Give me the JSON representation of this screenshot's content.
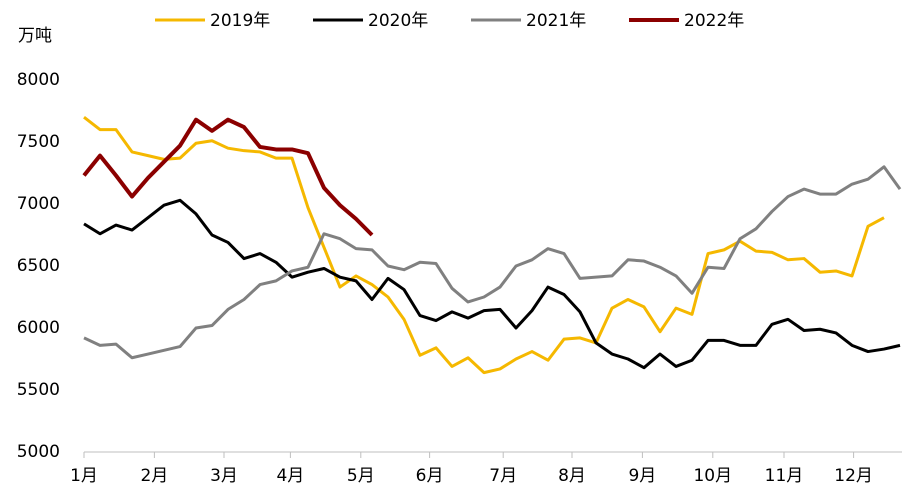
{
  "chart_data": {
    "type": "line",
    "y_label": "万吨",
    "x": [
      0,
      1,
      2,
      3,
      4,
      5,
      6,
      7,
      8,
      9,
      10,
      11,
      12,
      13,
      14,
      15,
      16,
      17,
      18,
      19,
      20,
      21,
      22,
      23,
      24,
      25,
      26,
      27,
      28,
      29,
      30,
      31,
      32,
      33,
      34,
      35,
      36,
      37,
      38,
      39,
      40,
      41,
      42,
      43,
      44,
      45,
      46,
      47,
      48,
      49,
      50,
      51
    ],
    "xlim": [
      0,
      51
    ],
    "xticks": [
      {
        "value": 0,
        "label": "1月"
      },
      {
        "value": 4.4,
        "label": "2月"
      },
      {
        "value": 8.75,
        "label": "3月"
      },
      {
        "value": 12.9,
        "label": "4月"
      },
      {
        "value": 17.3,
        "label": "5月"
      },
      {
        "value": 21.6,
        "label": "6月"
      },
      {
        "value": 26.2,
        "label": "7月"
      },
      {
        "value": 30.5,
        "label": "8月"
      },
      {
        "value": 34.9,
        "label": "9月"
      },
      {
        "value": 39.3,
        "label": "10月"
      },
      {
        "value": 43.75,
        "label": "11月"
      },
      {
        "value": 48.1,
        "label": "12月"
      }
    ],
    "ylim": [
      5000,
      8000
    ],
    "yticks": [
      5000,
      5500,
      6000,
      6500,
      7000,
      7500,
      8000
    ],
    "grid": false,
    "legend": "top",
    "series": [
      {
        "name": "2019年",
        "color": "#f5b800",
        "values": [
          7700,
          7600,
          7600,
          7420,
          7390,
          7360,
          7370,
          7490,
          7510,
          7450,
          7430,
          7420,
          7370,
          7370,
          6970,
          6650,
          6330,
          6420,
          6350,
          6250,
          6070,
          5780,
          5840,
          5690,
          5760,
          5640,
          5670,
          5750,
          5810,
          5740,
          5910,
          5920,
          5880,
          6160,
          6230,
          6170,
          5970,
          6160,
          6110,
          6600,
          6630,
          6700,
          6620,
          6610,
          6550,
          6560,
          6450,
          6460,
          6420,
          6820,
          6890,
          null
        ]
      },
      {
        "name": "2020年",
        "color": "#000000",
        "values": [
          6840,
          6760,
          6830,
          6790,
          6890,
          6990,
          7030,
          6920,
          6750,
          6690,
          6560,
          6600,
          6530,
          6410,
          6450,
          6480,
          6410,
          6380,
          6230,
          6400,
          6310,
          6100,
          6060,
          6130,
          6080,
          6140,
          6150,
          6000,
          6140,
          6330,
          6270,
          6130,
          5880,
          5790,
          5750,
          5680,
          5790,
          5690,
          5740,
          5900,
          5900,
          5860,
          5860,
          6030,
          6070,
          5980,
          5990,
          5960,
          5860,
          5810,
          5830,
          5860
        ]
      },
      {
        "name": "2021年",
        "color": "#808080",
        "values": [
          5920,
          5860,
          5870,
          5760,
          5790,
          5820,
          5850,
          6000,
          6020,
          6150,
          6230,
          6350,
          6380,
          6460,
          6490,
          6760,
          6720,
          6640,
          6630,
          6500,
          6470,
          6530,
          6520,
          6320,
          6210,
          6250,
          6330,
          6500,
          6550,
          6640,
          6600,
          6400,
          6410,
          6420,
          6550,
          6540,
          6490,
          6420,
          6280,
          6490,
          6480,
          6720,
          6800,
          6940,
          7060,
          7120,
          7080,
          7080,
          7160,
          7200,
          7300,
          7120
        ]
      },
      {
        "name": "2022年",
        "color": "#8b0000",
        "values": [
          7230,
          7390,
          7230,
          7060,
          7210,
          7340,
          7470,
          7680,
          7590,
          7680,
          7620,
          7460,
          7440,
          7440,
          7410,
          7130,
          6990,
          6880,
          6750,
          null,
          null,
          null,
          null,
          null,
          null,
          null,
          null,
          null,
          null,
          null,
          null,
          null,
          null,
          null,
          null,
          null,
          null,
          null,
          null,
          null,
          null,
          null,
          null,
          null,
          null,
          null,
          null,
          null,
          null,
          null,
          null,
          null
        ]
      }
    ]
  }
}
